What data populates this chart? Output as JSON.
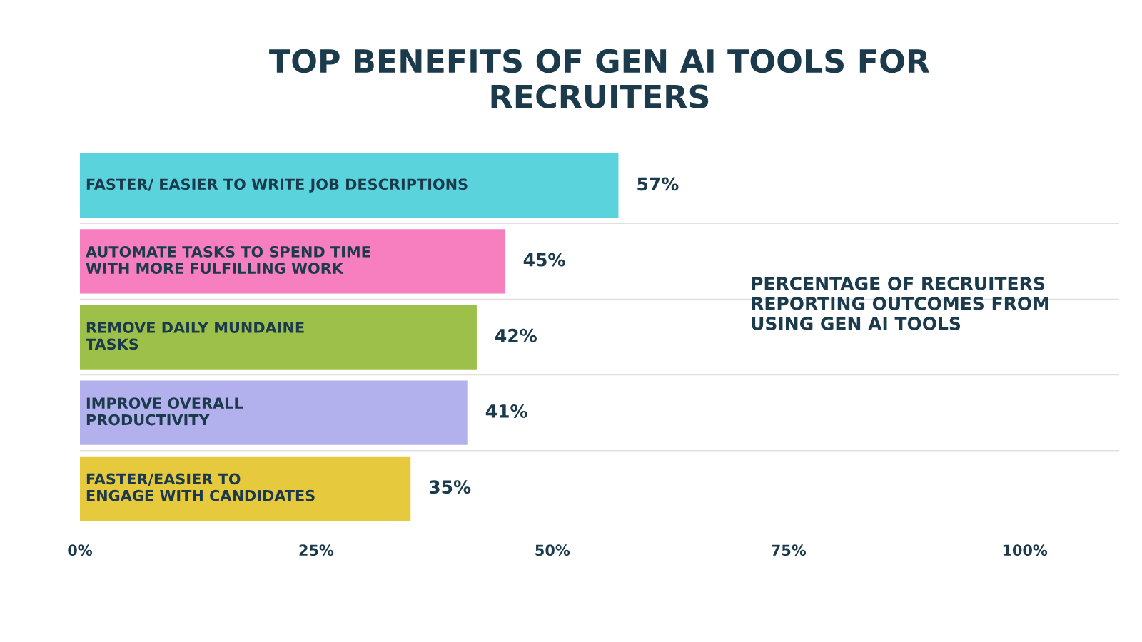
{
  "chart_data": {
    "type": "bar",
    "orientation": "horizontal",
    "title": "TOP BENEFITS OF GEN AI TOOLS FOR\nRECRUITERS",
    "categories": [
      "FASTER/ EASIER TO WRITE JOB DESCRIPTIONS",
      "AUTOMATE TASKS TO SPEND TIME\nWITH MORE FULFILLING WORK",
      "REMOVE DAILY MUNDAINE\nTASKS",
      "IMPROVE OVERALL\nPRODUCTIVITY",
      "FASTER/EASIER TO\nENGAGE WITH CANDIDATES"
    ],
    "values": [
      57,
      45,
      42,
      41,
      35
    ],
    "colors": [
      "#5bd3dc",
      "#f77fc0",
      "#9cc04a",
      "#b3b0ee",
      "#e6c93c"
    ],
    "value_labels": [
      "57%",
      "45%",
      "42%",
      "41%",
      "35%"
    ],
    "xlim": [
      0,
      110
    ],
    "xticks": [
      {
        "value": 0,
        "label": "0%"
      },
      {
        "value": 25,
        "label": "25%"
      },
      {
        "value": 50,
        "label": "50%"
      },
      {
        "value": 75,
        "label": "75%"
      },
      {
        "value": 100,
        "label": "100%"
      }
    ],
    "grid": "y",
    "annotations": [
      "PERCENTAGE OF RECRUITERS\nREPORTING OUTCOMES FROM\nUSING GEN AI TOOLS"
    ]
  }
}
